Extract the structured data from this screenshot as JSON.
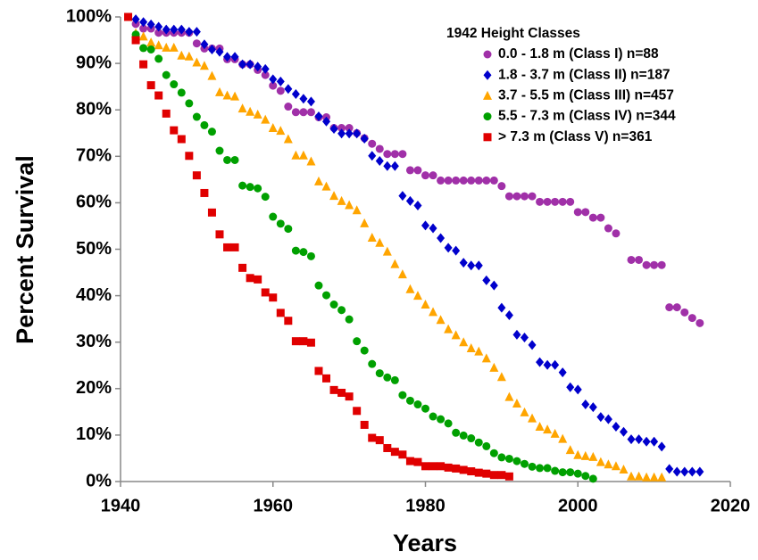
{
  "chart_data": {
    "type": "scatter",
    "xlabel": "Years",
    "ylabel": "Percent Survival",
    "legend_title": "1942 Height Classes",
    "legend": "upper right",
    "xlim": [
      1940,
      2020
    ],
    "xticks": [
      1940,
      1960,
      1980,
      2000,
      2020
    ],
    "ylim": [
      0,
      100
    ],
    "yticks": [
      {
        "value": 0,
        "label": "0%"
      },
      {
        "value": 10,
        "label": "10%"
      },
      {
        "value": 20,
        "label": "20%"
      },
      {
        "value": 30,
        "label": "30%"
      },
      {
        "value": 40,
        "label": "40%"
      },
      {
        "value": 50,
        "label": "50%"
      },
      {
        "value": 60,
        "label": "60%"
      },
      {
        "value": 70,
        "label": "70%"
      },
      {
        "value": 80,
        "label": "80%"
      },
      {
        "value": 90,
        "label": "90%"
      },
      {
        "value": 100,
        "label": "100%"
      }
    ],
    "grid": false,
    "series": [
      {
        "name": "0.0 - 1.8 m (Class I) n=88",
        "color": "#a030a8",
        "marker": "circle",
        "x": [
          1942,
          1943,
          1944,
          1945,
          1946,
          1947,
          1948,
          1949,
          1950,
          1951,
          1952,
          1953,
          1954,
          1955,
          1956,
          1957,
          1958,
          1959,
          1960,
          1961,
          1962,
          1963,
          1964,
          1965,
          1966,
          1967,
          1968,
          1969,
          1970,
          1971,
          1972,
          1973,
          1974,
          1975,
          1976,
          1977,
          1978,
          1979,
          1980,
          1981,
          1982,
          1983,
          1984,
          1985,
          1986,
          1987,
          1988,
          1989,
          1990,
          1991,
          1992,
          1993,
          1994,
          1995,
          1996,
          1997,
          1998,
          1999,
          2000,
          2001,
          2002,
          2003,
          2004,
          2005,
          2007,
          2008,
          2009,
          2010,
          2011,
          2012,
          2013,
          2014,
          2015,
          2016
        ],
        "values": [
          98.5,
          97.5,
          97.5,
          96.6,
          96.6,
          96.6,
          96.6,
          96.6,
          94.3,
          93.2,
          93.2,
          93.2,
          90.9,
          90.9,
          89.8,
          89.8,
          88.6,
          87.5,
          85.2,
          84.1,
          80.7,
          79.5,
          79.5,
          79.5,
          78.4,
          78.4,
          76.1,
          76.1,
          76.1,
          75.0,
          73.9,
          72.7,
          71.6,
          70.5,
          70.5,
          70.5,
          67.0,
          67.0,
          65.9,
          65.9,
          64.8,
          64.8,
          64.8,
          64.8,
          64.8,
          64.8,
          64.8,
          64.8,
          63.6,
          61.4,
          61.4,
          61.4,
          61.4,
          60.2,
          60.2,
          60.2,
          60.2,
          60.2,
          58.0,
          58.0,
          56.8,
          56.8,
          54.5,
          53.4,
          47.7,
          47.7,
          46.6,
          46.6,
          46.6,
          37.5,
          37.5,
          36.4,
          35.2,
          34.1
        ]
      },
      {
        "name": "1.8 - 3.7 m (Class II) n=187",
        "color": "#0000cc",
        "marker": "diamond",
        "x": [
          1942,
          1943,
          1944,
          1945,
          1946,
          1947,
          1948,
          1949,
          1950,
          1951,
          1952,
          1953,
          1954,
          1955,
          1956,
          1957,
          1958,
          1959,
          1960,
          1961,
          1962,
          1963,
          1964,
          1965,
          1966,
          1967,
          1968,
          1969,
          1970,
          1971,
          1972,
          1973,
          1974,
          1975,
          1976,
          1977,
          1978,
          1979,
          1980,
          1981,
          1982,
          1983,
          1984,
          1985,
          1986,
          1987,
          1988,
          1989,
          1990,
          1991,
          1992,
          1993,
          1994,
          1995,
          1996,
          1997,
          1998,
          1999,
          2000,
          2001,
          2002,
          2003,
          2004,
          2005,
          2006,
          2007,
          2008,
          2009,
          2010,
          2011,
          2012,
          2013,
          2014,
          2015,
          2016
        ],
        "values": [
          99.5,
          98.9,
          98.4,
          97.9,
          97.3,
          97.3,
          97.3,
          96.8,
          96.8,
          94.1,
          93.0,
          92.5,
          91.4,
          91.4,
          89.8,
          89.8,
          89.3,
          88.8,
          86.6,
          86.1,
          84.5,
          83.4,
          82.4,
          81.8,
          78.6,
          77.5,
          75.9,
          74.9,
          74.9,
          74.9,
          73.8,
          70.1,
          69.0,
          67.9,
          67.9,
          61.5,
          60.4,
          59.4,
          55.1,
          54.5,
          52.4,
          50.3,
          49.7,
          47.1,
          46.5,
          46.5,
          43.3,
          42.2,
          37.4,
          35.8,
          31.6,
          31.0,
          29.4,
          25.7,
          25.1,
          25.1,
          23.5,
          20.3,
          19.8,
          16.6,
          16.0,
          13.9,
          13.4,
          11.8,
          10.7,
          9.1,
          9.1,
          8.6,
          8.6,
          7.5,
          2.7,
          2.1,
          2.1,
          2.1,
          2.1
        ]
      },
      {
        "name": "3.7 - 5.5 m (Class III) n=457",
        "color": "#ffa500",
        "marker": "triangle",
        "x": [
          1942,
          1943,
          1944,
          1945,
          1946,
          1947,
          1948,
          1949,
          1950,
          1951,
          1952,
          1953,
          1954,
          1955,
          1956,
          1957,
          1958,
          1959,
          1960,
          1961,
          1962,
          1963,
          1964,
          1965,
          1966,
          1967,
          1968,
          1969,
          1970,
          1971,
          1972,
          1973,
          1974,
          1975,
          1976,
          1977,
          1978,
          1979,
          1980,
          1981,
          1982,
          1983,
          1984,
          1985,
          1986,
          1987,
          1988,
          1989,
          1990,
          1991,
          1992,
          1993,
          1994,
          1995,
          1996,
          1997,
          1998,
          1999,
          2000,
          2001,
          2002,
          2003,
          2004,
          2005,
          2006,
          2007,
          2008,
          2009,
          2010,
          2011
        ],
        "values": [
          96.5,
          95.8,
          94.5,
          93.9,
          93.4,
          93.4,
          91.7,
          91.5,
          90.2,
          89.5,
          87.3,
          83.8,
          83.1,
          82.9,
          80.3,
          79.6,
          79.0,
          77.9,
          76.1,
          75.5,
          73.7,
          70.2,
          70.2,
          68.9,
          64.6,
          63.5,
          61.5,
          60.4,
          59.5,
          58.4,
          55.6,
          52.5,
          51.4,
          49.5,
          46.8,
          44.6,
          41.4,
          40.0,
          38.1,
          36.5,
          34.8,
          32.8,
          31.5,
          30.0,
          28.7,
          28.0,
          26.5,
          24.5,
          22.5,
          18.2,
          16.8,
          14.9,
          13.6,
          11.8,
          11.2,
          10.3,
          9.2,
          6.8,
          5.7,
          5.5,
          5.3,
          4.2,
          3.7,
          3.3,
          2.6,
          1.1,
          1.1,
          0.9,
          0.9,
          0.9
        ]
      },
      {
        "name": "5.5 - 7.3 m (Class IV) n=344",
        "color": "#00a000",
        "marker": "circle",
        "x": [
          1942,
          1943,
          1944,
          1945,
          1946,
          1947,
          1948,
          1949,
          1950,
          1951,
          1952,
          1953,
          1954,
          1955,
          1956,
          1957,
          1958,
          1959,
          1960,
          1961,
          1962,
          1963,
          1964,
          1965,
          1966,
          1967,
          1968,
          1969,
          1970,
          1971,
          1972,
          1973,
          1974,
          1975,
          1976,
          1977,
          1978,
          1979,
          1980,
          1981,
          1982,
          1983,
          1984,
          1985,
          1986,
          1987,
          1988,
          1989,
          1990,
          1991,
          1992,
          1993,
          1994,
          1995,
          1996,
          1997,
          1998,
          1999,
          2000,
          2001,
          2002
        ],
        "values": [
          96.2,
          93.3,
          93.0,
          91.0,
          87.5,
          85.5,
          83.7,
          81.4,
          78.5,
          76.7,
          75.3,
          71.2,
          69.2,
          69.2,
          63.7,
          63.4,
          63.1,
          61.3,
          57.0,
          55.5,
          54.4,
          49.7,
          49.4,
          48.5,
          42.2,
          40.1,
          38.1,
          36.9,
          34.9,
          30.2,
          28.2,
          25.3,
          23.3,
          22.4,
          21.8,
          18.6,
          17.4,
          16.6,
          15.7,
          14.0,
          13.4,
          12.5,
          10.5,
          9.9,
          9.3,
          8.4,
          7.6,
          6.1,
          5.2,
          4.9,
          4.4,
          3.8,
          3.2,
          2.9,
          2.9,
          2.3,
          2.0,
          2.0,
          1.7,
          1.2,
          0.6
        ]
      },
      {
        "name": "> 7.3 m (Class V) n=361",
        "color": "#e00000",
        "marker": "square",
        "x": [
          1941,
          1942,
          1943,
          1944,
          1945,
          1946,
          1947,
          1948,
          1949,
          1950,
          1951,
          1952,
          1953,
          1954,
          1955,
          1956,
          1957,
          1958,
          1959,
          1960,
          1961,
          1962,
          1963,
          1964,
          1965,
          1966,
          1967,
          1968,
          1969,
          1970,
          1971,
          1972,
          1973,
          1974,
          1975,
          1976,
          1977,
          1978,
          1979,
          1980,
          1981,
          1982,
          1983,
          1984,
          1985,
          1986,
          1987,
          1988,
          1989,
          1990,
          1991
        ],
        "values": [
          100,
          95.0,
          89.8,
          85.3,
          83.1,
          79.2,
          75.6,
          73.7,
          70.1,
          65.9,
          62.1,
          57.9,
          53.2,
          50.4,
          50.4,
          46.0,
          43.8,
          43.5,
          40.7,
          39.6,
          36.3,
          34.6,
          30.2,
          30.2,
          29.9,
          23.8,
          22.2,
          19.7,
          19.1,
          18.3,
          15.2,
          12.2,
          9.4,
          8.9,
          7.2,
          6.4,
          5.8,
          4.4,
          4.2,
          3.3,
          3.3,
          3.3,
          3.0,
          2.8,
          2.5,
          2.2,
          1.9,
          1.7,
          1.4,
          1.4,
          1.1
        ]
      }
    ]
  }
}
